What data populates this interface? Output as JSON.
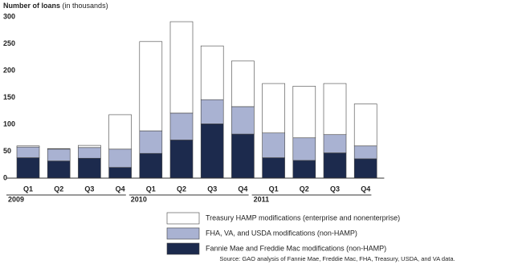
{
  "chart_data": {
    "type": "stacked_bar",
    "ylabel": "Number of loans",
    "ylabel_note": "(in thousands)",
    "categories": [
      "Q1",
      "Q2",
      "Q3",
      "Q4",
      "Q1",
      "Q2",
      "Q3",
      "Q4",
      "Q1",
      "Q2",
      "Q3",
      "Q4"
    ],
    "year_labels": [
      "2009",
      null,
      null,
      null,
      "2010",
      null,
      null,
      null,
      "2011",
      null,
      null,
      null
    ],
    "series": [
      {
        "name": "Fannie Mae and Freddie Mac modifications (non-HAMP)",
        "color": "#1c2a4d",
        "values": [
          38,
          32,
          37,
          20,
          46,
          71,
          101,
          82,
          38,
          33,
          47,
          36
        ]
      },
      {
        "name": "FHA, VA, and USDA modifications (non-HAMP)",
        "color": "#a9b2d2",
        "values": [
          20,
          22,
          20,
          34,
          42,
          50,
          45,
          51,
          46,
          42,
          34,
          24
        ]
      },
      {
        "name": "Treasury HAMP modifications (enterprise and nonenterprise)",
        "color": "#ffffff",
        "values": [
          2,
          1,
          4,
          64,
          166,
          170,
          100,
          85,
          92,
          96,
          95,
          78
        ]
      }
    ],
    "ylim": [
      0,
      300
    ],
    "yticks": [
      0,
      50,
      100,
      150,
      200,
      250,
      300
    ],
    "source": "Source: GAO analysis of Fannie Mae, Freddie Mac, FHA, Treasury, USDA, and VA data."
  }
}
